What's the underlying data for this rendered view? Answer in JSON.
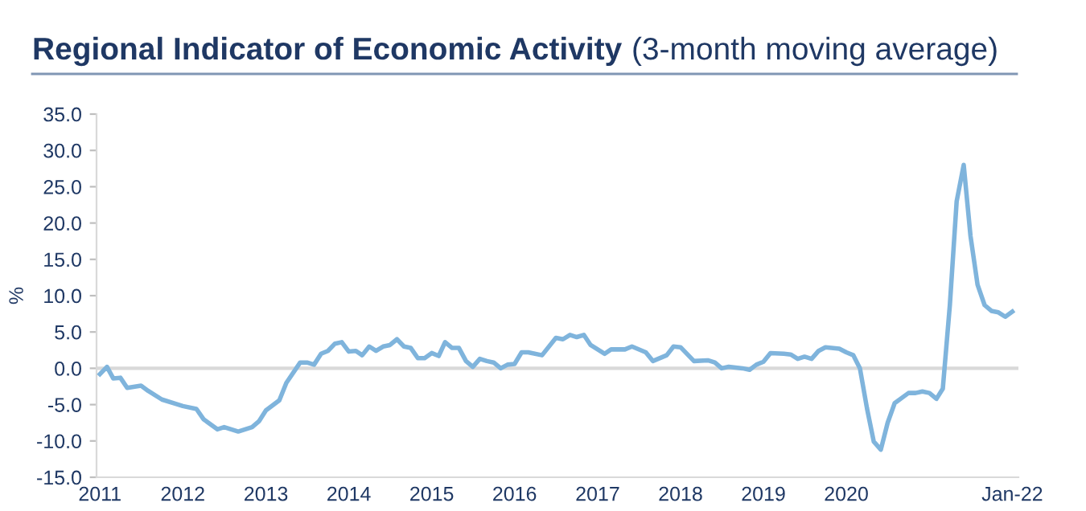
{
  "chart_data": {
    "type": "line",
    "title": "Regional Indicator of Economic Activity",
    "subtitle": "(3-month moving average)",
    "ylabel": "%",
    "x": [
      "2011-01",
      "2011-02",
      "2011-03",
      "2011-04",
      "2011-05",
      "2011-07",
      "2011-08",
      "2011-10",
      "2011-12",
      "2012-01",
      "2012-03",
      "2012-04",
      "2012-06",
      "2012-07",
      "2012-09",
      "2012-11",
      "2012-12",
      "2013-01",
      "2013-03",
      "2013-04",
      "2013-06",
      "2013-07",
      "2013-08",
      "2013-09",
      "2013-10",
      "2013-11",
      "2013-12",
      "2014-01",
      "2014-02",
      "2014-03",
      "2014-04",
      "2014-05",
      "2014-06",
      "2014-07",
      "2014-08",
      "2014-09",
      "2014-10",
      "2014-11",
      "2014-12",
      "2015-01",
      "2015-02",
      "2015-03",
      "2015-04",
      "2015-05",
      "2015-06",
      "2015-07",
      "2015-08",
      "2015-09",
      "2015-10",
      "2015-11",
      "2015-12",
      "2016-01",
      "2016-02",
      "2016-03",
      "2016-05",
      "2016-07",
      "2016-08",
      "2016-09",
      "2016-10",
      "2016-11",
      "2016-12",
      "2017-02",
      "2017-03",
      "2017-05",
      "2017-06",
      "2017-08",
      "2017-09",
      "2017-11",
      "2017-12",
      "2018-01",
      "2018-03",
      "2018-05",
      "2018-06",
      "2018-07",
      "2018-08",
      "2018-10",
      "2018-11",
      "2018-12",
      "2019-01",
      "2019-02",
      "2019-04",
      "2019-05",
      "2019-06",
      "2019-07",
      "2019-08",
      "2019-09",
      "2019-10",
      "2019-12",
      "2020-01",
      "2020-02",
      "2020-03",
      "2020-04",
      "2020-05",
      "2020-06",
      "2020-07",
      "2020-08",
      "2020-10",
      "2020-11",
      "2020-12",
      "2021-01",
      "2021-02",
      "2021-03",
      "2021-04",
      "2021-05",
      "2021-06",
      "2021-07",
      "2021-08",
      "2021-09",
      "2021-10",
      "2021-11",
      "2021-12",
      "2022-01"
    ],
    "series": [
      {
        "color": "#7fb4dc",
        "values": [
          -0.8,
          0.2,
          -1.4,
          -1.3,
          -2.7,
          -2.4,
          -3.1,
          -4.3,
          -4.9,
          -5.2,
          -5.6,
          -7.0,
          -8.4,
          -8.1,
          -8.7,
          -8.1,
          -7.3,
          -5.8,
          -4.4,
          -2.0,
          0.8,
          0.8,
          0.5,
          2.0,
          2.4,
          3.4,
          3.6,
          2.3,
          2.4,
          1.8,
          3.0,
          2.4,
          3.0,
          3.2,
          4.0,
          3.0,
          2.8,
          1.4,
          1.4,
          2.1,
          1.7,
          3.6,
          2.8,
          2.8,
          1.0,
          0.2,
          1.3,
          1.0,
          0.8,
          0.0,
          0.5,
          0.6,
          2.2,
          2.2,
          1.8,
          4.2,
          4.0,
          4.6,
          4.3,
          4.6,
          3.2,
          2.0,
          2.6,
          2.6,
          3.0,
          2.2,
          1.0,
          1.8,
          3.0,
          2.9,
          1.0,
          1.1,
          0.8,
          0.0,
          0.2,
          0.0,
          -0.2,
          0.5,
          0.9,
          2.1,
          2.0,
          1.9,
          1.3,
          1.6,
          1.3,
          2.4,
          2.9,
          2.7,
          2.2,
          1.8,
          0.0,
          -5.5,
          -10.1,
          -11.2,
          -7.5,
          -4.8,
          -3.4,
          -3.4,
          -3.2,
          -3.4,
          -4.2,
          -2.8,
          8.7,
          23.0,
          28.0,
          18.2,
          11.5,
          8.7,
          7.9,
          7.7,
          7.1,
          7.8
        ]
      }
    ],
    "xlim": [
      "2010-12-17",
      "2022-01-28"
    ],
    "xticks": [
      "2011",
      "2012",
      "2013",
      "2014",
      "2015",
      "2016",
      "2017",
      "2018",
      "2019",
      "2020",
      {
        "value": "2022-01",
        "label": "Jan-22"
      }
    ],
    "ylim": [
      -15,
      35
    ],
    "yticks": [
      {
        "value": -15,
        "label": "-15.0"
      },
      {
        "value": -10,
        "label": "-10.0"
      },
      {
        "value": -5,
        "label": "-5.0"
      },
      {
        "value": 0,
        "label": "0.0"
      },
      {
        "value": 5,
        "label": "5.0"
      },
      {
        "value": 10,
        "label": "10.0"
      },
      {
        "value": 15,
        "label": "15.0"
      },
      {
        "value": 20,
        "label": "20.0"
      },
      {
        "value": 25,
        "label": "25.0"
      },
      {
        "value": 30,
        "label": "30.0"
      },
      {
        "value": 35,
        "label": "35.0"
      }
    ],
    "ref_lines": [
      {
        "axis": "y",
        "value": 0,
        "color": "#d9d9d9"
      }
    ],
    "grid": false,
    "marker": "none",
    "line_style": "solid"
  }
}
